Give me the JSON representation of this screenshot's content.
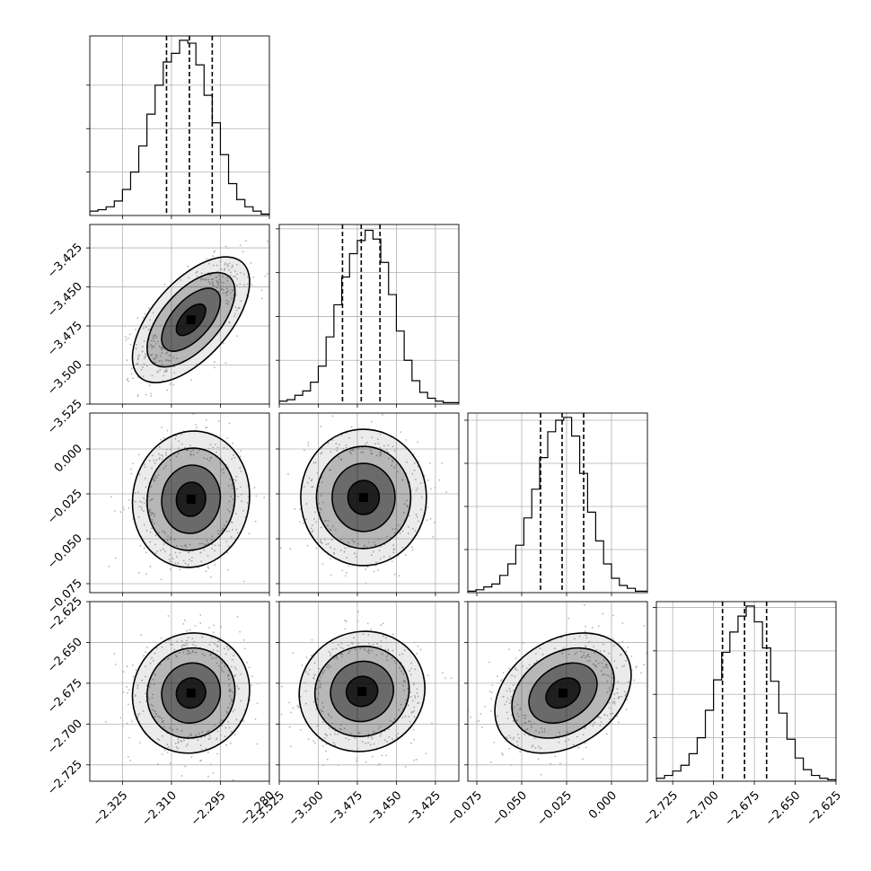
{
  "chart_data": {
    "type": "corner",
    "parameters": [
      "",
      "",
      "",
      ""
    ],
    "grid": true,
    "marginals": [
      {
        "range": [
          -2.335,
          -2.28
        ],
        "quantiles": [
          -2.3115,
          -2.3045,
          -2.2975
        ],
        "x_ticks": [
          "-2.325",
          "-2.310",
          "-2.295",
          "-2.280"
        ],
        "x_tick_values": [
          -2.325,
          -2.31,
          -2.295,
          -2.28
        ],
        "bin_edges": [
          -2.335,
          -2.3325,
          -2.33,
          -2.3275,
          -2.325,
          -2.3225,
          -2.32,
          -2.3175,
          -2.315,
          -2.3125,
          -2.31,
          -2.3075,
          -2.305,
          -2.3025,
          -2.3,
          -2.2975,
          -2.295,
          -2.2925,
          -2.29,
          -2.2875,
          -2.285,
          -2.2825,
          -2.28
        ],
        "counts": [
          3,
          4,
          6,
          10,
          18,
          30,
          48,
          70,
          90,
          106,
          112,
          121,
          119,
          104,
          83,
          64,
          42,
          22,
          11,
          6,
          3,
          1
        ],
        "count_range": [
          0,
          124
        ],
        "count_ticks": [
          30,
          60,
          90
        ]
      },
      {
        "range": [
          -3.525,
          -3.41
        ],
        "quantiles": [
          -3.4845,
          -3.4725,
          -3.4605
        ],
        "x_ticks": [
          "-3.525",
          "-3.500",
          "-3.475",
          "-3.450",
          "-3.425"
        ],
        "x_tick_values": [
          -3.525,
          -3.5,
          -3.475,
          -3.45,
          -3.425
        ],
        "bin_edges": [
          -3.525,
          -3.52,
          -3.515,
          -3.51,
          -3.505,
          -3.5,
          -3.495,
          -3.49,
          -3.485,
          -3.48,
          -3.475,
          -3.47,
          -3.465,
          -3.46,
          -3.455,
          -3.45,
          -3.445,
          -3.44,
          -3.435,
          -3.43,
          -3.425,
          -3.42,
          -3.415,
          -3.41
        ],
        "counts": [
          2,
          3,
          6,
          9,
          15,
          26,
          46,
          68,
          87,
          103,
          112,
          119,
          113,
          97,
          75,
          50,
          30,
          16,
          8,
          4,
          2,
          1,
          1
        ],
        "count_range": [
          0,
          123
        ],
        "count_ticks": [
          30,
          60,
          90,
          120
        ]
      },
      {
        "range": [
          -0.08,
          0.02
        ],
        "quantiles": [
          -0.0395,
          -0.0275,
          -0.0155
        ],
        "x_ticks": [
          "-0.075",
          "-0.050",
          "-0.025",
          "0.000"
        ],
        "x_tick_values": [
          -0.075,
          -0.05,
          -0.025,
          0
        ],
        "bin_edges": [
          -0.08,
          -0.0755,
          -0.0711,
          -0.0666,
          -0.0622,
          -0.0577,
          -0.0533,
          -0.0488,
          -0.0444,
          -0.04,
          -0.0355,
          -0.0311,
          -0.0266,
          -0.0222,
          -0.0177,
          -0.0133,
          -0.0088,
          -0.0044,
          0.0,
          0.0044,
          0.0088,
          0.0133,
          0.0177,
          0.02
        ],
        "counts": [
          1,
          2,
          4,
          6,
          12,
          20,
          33,
          52,
          72,
          94,
          112,
          120,
          122,
          109,
          83,
          56,
          36,
          20,
          10,
          5,
          3,
          1,
          1
        ],
        "count_range": [
          0,
          125
        ],
        "count_ticks": [
          30,
          60,
          90,
          120
        ]
      },
      {
        "range": [
          -2.735,
          -2.625
        ],
        "quantiles": [
          -2.6945,
          -2.681,
          -2.6675
        ],
        "x_ticks": [
          "-2.725",
          "-2.700",
          "-2.675",
          "-2.650",
          "-2.625"
        ],
        "x_tick_values": [
          -2.725,
          -2.7,
          -2.675,
          -2.65,
          -2.625
        ],
        "bin_edges": [
          -2.735,
          -2.73,
          -2.725,
          -2.72,
          -2.715,
          -2.71,
          -2.705,
          -2.7,
          -2.695,
          -2.69,
          -2.685,
          -2.68,
          -2.675,
          -2.67,
          -2.665,
          -2.66,
          -2.655,
          -2.65,
          -2.645,
          -2.64,
          -2.635,
          -2.63,
          -2.625
        ],
        "counts": [
          2,
          4,
          7,
          11,
          19,
          30,
          49,
          70,
          89,
          103,
          114,
          121,
          110,
          92,
          69,
          47,
          29,
          16,
          8,
          4,
          2,
          1
        ],
        "count_range": [
          0,
          124
        ],
        "count_ticks": [
          30,
          60,
          90,
          120
        ]
      }
    ],
    "y_axes": [
      null,
      {
        "range": [
          -3.525,
          -3.41
        ],
        "ticks": [
          "-3.425",
          "-3.450",
          "-3.475",
          "-3.500",
          "-3.525"
        ],
        "tick_values": [
          -3.425,
          -3.45,
          -3.475,
          -3.5,
          -3.525
        ]
      },
      {
        "range": [
          -0.08,
          0.02
        ],
        "ticks": [
          "0.000",
          "-0.025",
          "-0.050",
          "-0.075"
        ],
        "tick_values": [
          0,
          -0.025,
          -0.05,
          -0.075
        ]
      },
      {
        "range": [
          -2.735,
          -2.625
        ],
        "ticks": [
          "-2.625",
          "-2.650",
          "-2.675",
          "-2.700",
          "-2.725"
        ],
        "tick_values": [
          -2.625,
          -2.65,
          -2.675,
          -2.7,
          -2.725
        ]
      }
    ],
    "joints": [
      {
        "x": 0,
        "y": 1,
        "mean_x": -2.304,
        "mean_y": -3.471,
        "sd_x": 0.0078,
        "sd_y": 0.0175,
        "corr": 0.6
      },
      {
        "x": 0,
        "y": 2,
        "mean_x": -2.304,
        "mean_y": -0.028,
        "sd_x": 0.0078,
        "sd_y": 0.0165,
        "corr": 0.05
      },
      {
        "x": 1,
        "y": 2,
        "mean_x": -3.471,
        "mean_y": -0.027,
        "sd_x": 0.0175,
        "sd_y": 0.0165,
        "corr": 0.0
      },
      {
        "x": 0,
        "y": 3,
        "mean_x": -2.304,
        "mean_y": -2.681,
        "sd_x": 0.0078,
        "sd_y": 0.016,
        "corr": 0.05
      },
      {
        "x": 1,
        "y": 3,
        "mean_x": -3.472,
        "mean_y": -2.68,
        "sd_x": 0.0175,
        "sd_y": 0.016,
        "corr": 0.05
      },
      {
        "x": 2,
        "y": 3,
        "mean_x": -0.027,
        "mean_y": -2.681,
        "sd_x": 0.0165,
        "sd_y": 0.016,
        "corr": 0.3
      }
    ],
    "contour_levels_sigma": [
      0.5,
      1.0,
      1.5,
      2.0
    ],
    "colors": {
      "hist": "#000000",
      "points": "#b4b4b4",
      "grid": "#b0b0b0",
      "density": "#000000"
    }
  }
}
